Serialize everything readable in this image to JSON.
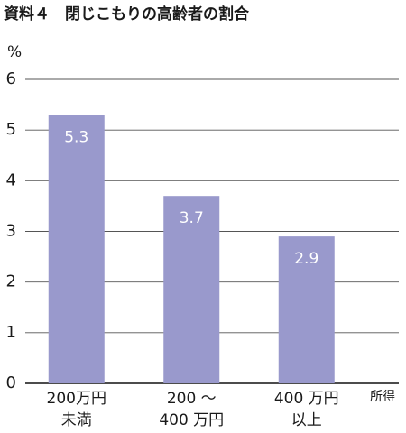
{
  "chart_data": {
    "type": "bar",
    "title": "資料４　閉じこもりの高齢者の割合",
    "y_label": "%",
    "x_label": "所得",
    "categories": [
      [
        "200万円",
        "未満"
      ],
      [
        "200 ～",
        "400 万円"
      ],
      [
        "400 万円",
        "以上"
      ]
    ],
    "values": [
      5.3,
      3.7,
      2.9
    ],
    "color": "#9999cc",
    "ylim": [
      0,
      6
    ],
    "yticks": [
      0,
      1,
      2,
      3,
      4,
      5,
      6
    ],
    "grid": true
  }
}
